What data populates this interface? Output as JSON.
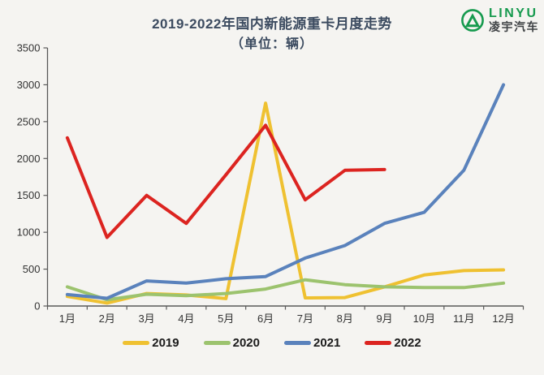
{
  "header": {
    "title": "2019-2022年国内新能源重卡月度走势",
    "subtitle": "（单位：辆）"
  },
  "logo": {
    "brand": "LINYU",
    "brand_cn": "凌宇汽车",
    "color": "#169a4e"
  },
  "axis": {
    "color": "#595959",
    "label_color": "#333333"
  },
  "chart_data": {
    "type": "line",
    "title": "2019-2022年国内新能源重卡月度走势",
    "subtitle": "（单位：辆）",
    "categories": [
      "1月",
      "2月",
      "3月",
      "4月",
      "5月",
      "6月",
      "7月",
      "8月",
      "9月",
      "10月",
      "11月",
      "12月"
    ],
    "series": [
      {
        "name": "2019",
        "color": "#EFC131",
        "values": [
          130,
          40,
          170,
          150,
          100,
          2750,
          110,
          115,
          260,
          420,
          480,
          490
        ]
      },
      {
        "name": "2020",
        "color": "#9CC36E",
        "values": [
          260,
          85,
          160,
          140,
          170,
          230,
          355,
          290,
          260,
          250,
          250,
          310
        ]
      },
      {
        "name": "2021",
        "color": "#5A82BC",
        "values": [
          155,
          105,
          340,
          310,
          370,
          400,
          650,
          820,
          1120,
          1270,
          1840,
          3000
        ]
      },
      {
        "name": "2022",
        "color": "#DC2420",
        "values": [
          2280,
          930,
          1500,
          1120,
          1780,
          2450,
          1440,
          1840,
          1850,
          null,
          null,
          null
        ]
      }
    ],
    "ylim": [
      0,
      3500
    ],
    "ytick_step": 500,
    "xlabel": "",
    "ylabel": "",
    "grid": false,
    "legend_position": "bottom"
  }
}
